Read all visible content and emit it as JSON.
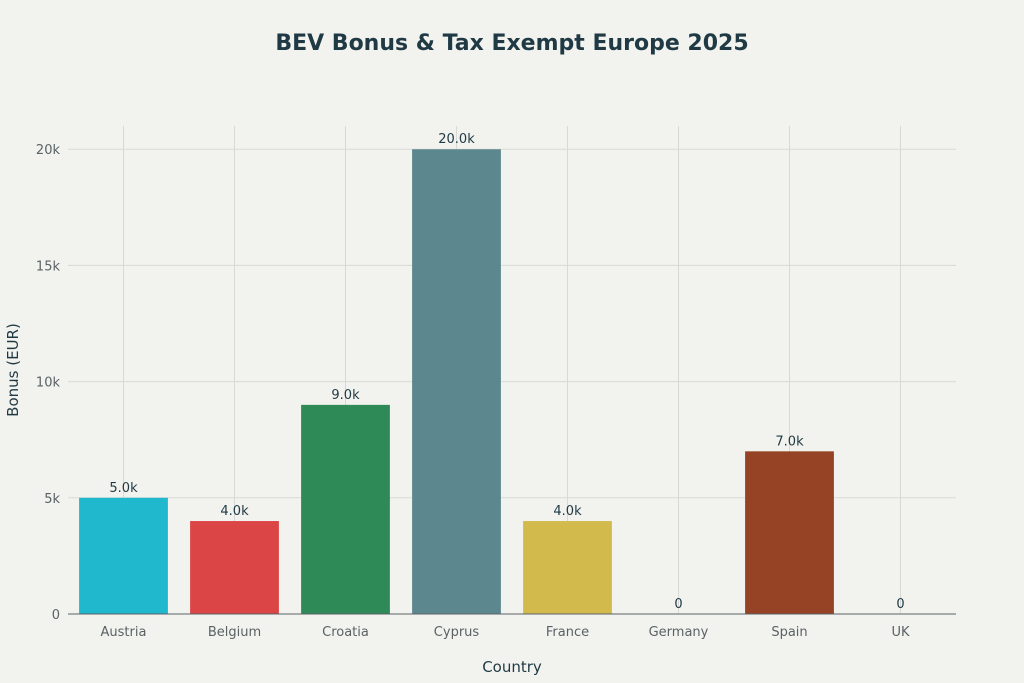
{
  "chart_data": {
    "type": "bar",
    "title": "BEV Bonus & Tax Exempt Europe 2025",
    "xlabel": "Country",
    "ylabel": "Bonus (EUR)",
    "categories": [
      "Austria",
      "Belgium",
      "Croatia",
      "Cyprus",
      "France",
      "Germany",
      "Spain",
      "UK"
    ],
    "values": [
      5000,
      4000,
      9000,
      20000,
      4000,
      0,
      7000,
      0
    ],
    "data_labels": [
      "5.0k",
      "4.0k",
      "9.0k",
      "20.0k",
      "4.0k",
      "0",
      "7.0k",
      "0"
    ],
    "colors": [
      "#1fb8cd",
      "#db4545",
      "#2e8b57",
      "#5d878f",
      "#d2ba4c",
      "#b4413c",
      "#964325",
      "#944454"
    ],
    "ylim": [
      0,
      21000
    ],
    "yticks": [
      0,
      5000,
      10000,
      15000,
      20000
    ],
    "ytick_labels": [
      "0",
      "5k",
      "10k",
      "15k",
      "20k"
    ],
    "grid": true,
    "legend": false
  }
}
